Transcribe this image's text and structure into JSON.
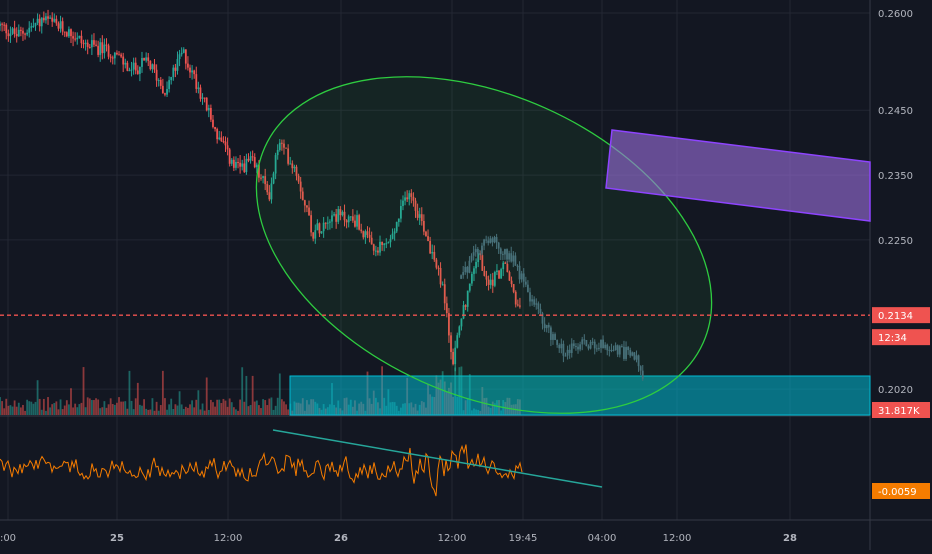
{
  "colors": {
    "background": "#131722",
    "grid": "#232733",
    "bull": "#26a69a",
    "bear": "#ef5350",
    "projection": "#4a6a7f",
    "price_line": "#ef5350",
    "ellipse": "#2ecc40",
    "channel": "#9c6fe0",
    "support_zone": "#00bcd4",
    "oscillator": "#f57c00",
    "trendline": "#26a69a",
    "osc_badge": "#f57c00"
  },
  "price_axis": {
    "ticks": [
      "0.2600",
      "0.2450",
      "0.2350",
      "0.2250",
      "0.2020"
    ],
    "current_price_label": "0.2134",
    "countdown_label": "12:34",
    "volume_label": "31.817K"
  },
  "time_axis": {
    "labels": [
      ":00",
      "25",
      "12:00",
      "26",
      "12:00",
      "19:45",
      "04:00",
      "12:00",
      "28"
    ],
    "bold_labels": [
      "25",
      "26",
      "28"
    ]
  },
  "oscillator": {
    "value_label": "-0.0059"
  },
  "chart_data": {
    "type": "candlestick",
    "title": "",
    "price_range": [
      0.198,
      0.262
    ],
    "current_price": 0.2134,
    "series": [
      {
        "name": "price",
        "anchors": [
          [
            0.0,
            0.258
          ],
          [
            0.02,
            0.2565
          ],
          [
            0.05,
            0.259
          ],
          [
            0.08,
            0.257
          ],
          [
            0.1,
            0.255
          ],
          [
            0.13,
            0.254
          ],
          [
            0.15,
            0.251
          ],
          [
            0.17,
            0.2525
          ],
          [
            0.19,
            0.248
          ],
          [
            0.21,
            0.254
          ],
          [
            0.23,
            0.248
          ],
          [
            0.25,
            0.241
          ],
          [
            0.27,
            0.236
          ],
          [
            0.29,
            0.237
          ],
          [
            0.31,
            0.232
          ],
          [
            0.32,
            0.24
          ],
          [
            0.34,
            0.236
          ],
          [
            0.36,
            0.226
          ],
          [
            0.38,
            0.229
          ],
          [
            0.41,
            0.228
          ],
          [
            0.43,
            0.223
          ],
          [
            0.45,
            0.225
          ],
          [
            0.47,
            0.233
          ],
          [
            0.49,
            0.226
          ],
          [
            0.51,
            0.217
          ],
          [
            0.52,
            0.206
          ],
          [
            0.53,
            0.213
          ],
          [
            0.55,
            0.223
          ],
          [
            0.56,
            0.218
          ],
          [
            0.58,
            0.221
          ],
          [
            0.6,
            0.213
          ]
        ]
      },
      {
        "name": "projection",
        "anchors": [
          [
            0.53,
            0.219
          ],
          [
            0.56,
            0.2255
          ],
          [
            0.59,
            0.222
          ],
          [
            0.61,
            0.216
          ],
          [
            0.63,
            0.211
          ],
          [
            0.65,
            0.2075
          ],
          [
            0.67,
            0.209
          ],
          [
            0.7,
            0.2085
          ],
          [
            0.73,
            0.207
          ],
          [
            0.74,
            0.204
          ]
        ]
      }
    ],
    "support_zone": [
      0.2005,
      0.2035
    ],
    "descending_channel": {
      "upper": [
        0.238,
        0.235
      ],
      "lower": [
        0.231,
        0.226
      ]
    },
    "oscillator_current": -0.0059
  }
}
